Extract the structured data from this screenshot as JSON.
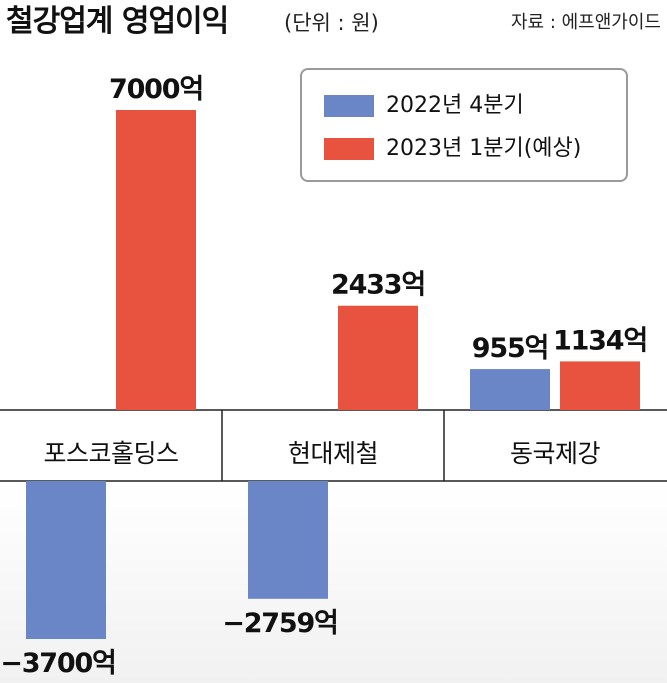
{
  "header": {
    "title": "철강업계 영업이익",
    "unit": "(단위 : 원)",
    "source": "자료 : 에프앤가이드"
  },
  "colors": {
    "q4_2022": "#6b86c6",
    "q1_2023": "#e8533f",
    "axis": "#222222"
  },
  "chart_data": {
    "type": "bar",
    "title": "철강업계 영업이익",
    "unit": "(단위 : 원)",
    "categories": [
      "포스코홀딩스",
      "현대제철",
      "동국제강"
    ],
    "series": [
      {
        "name": "2022년 4분기",
        "values": [
          -3700,
          -2759,
          955
        ],
        "labels": [
          "−3700억",
          "−2759억",
          "955억"
        ]
      },
      {
        "name": "2023년 1분기(예상)",
        "values": [
          7000,
          2433,
          1134
        ],
        "labels": [
          "7000억",
          "2433억",
          "1134억"
        ]
      }
    ],
    "legend": "top-right",
    "grid": false
  }
}
